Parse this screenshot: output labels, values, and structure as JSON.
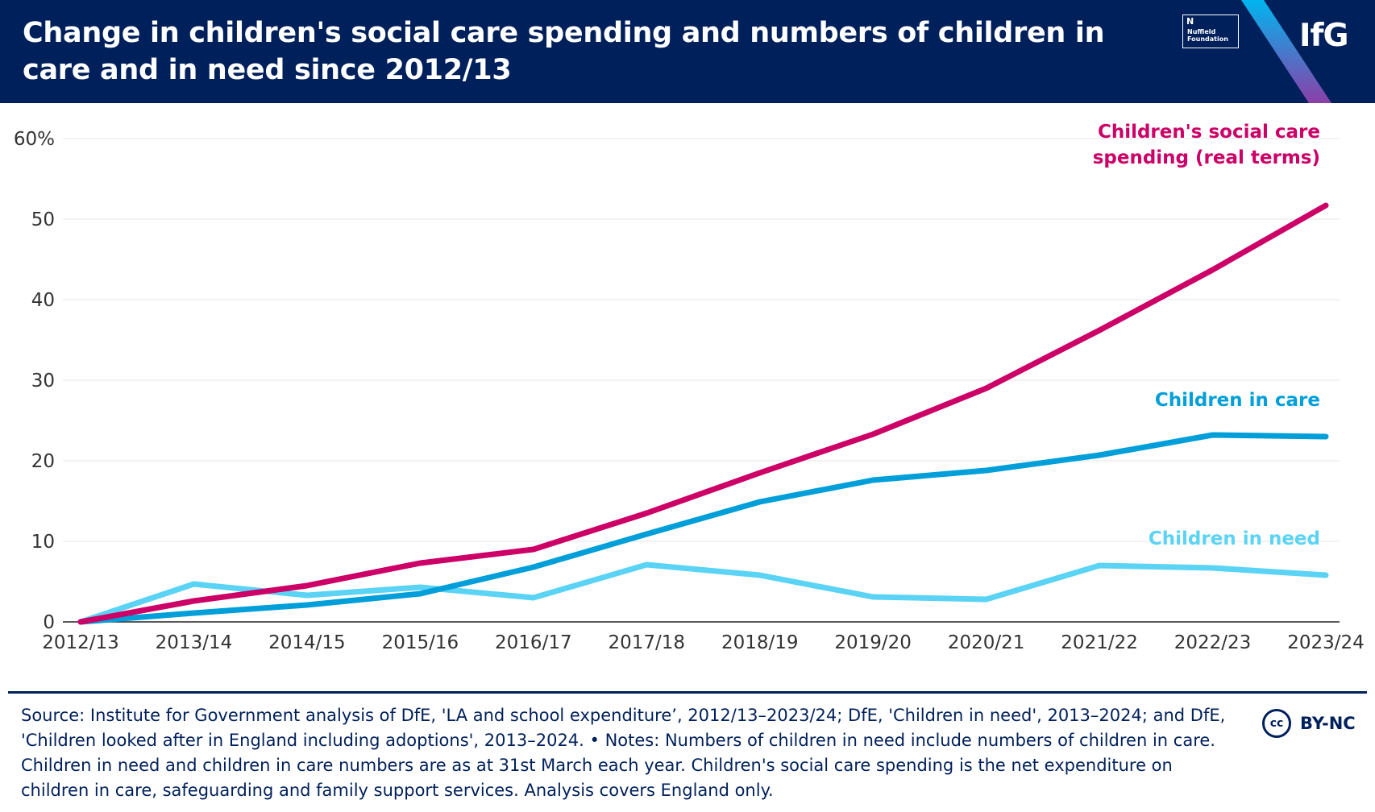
{
  "header": {
    "title": "Change in children's social care spending and numbers of children in care and in need since 2012/13",
    "nuffield_logo_text": "Nuffield Foundation",
    "ifg_logo_text": "IfG"
  },
  "colors": {
    "header_bg": "#00205b",
    "spending": "#cc0066",
    "in_care": "#009fd9",
    "in_need": "#5ad3f5",
    "axis_text": "#333333",
    "grid": "#e6e6e6"
  },
  "chart_data": {
    "type": "line",
    "title": "Change in children's social care spending and numbers of children in care and in need since 2012/13",
    "xlabel": "",
    "ylabel": "",
    "categories": [
      "2012/13",
      "2013/14",
      "2014/15",
      "2015/16",
      "2016/17",
      "2017/18",
      "2018/19",
      "2019/20",
      "2020/21",
      "2021/22",
      "2022/23",
      "2023/24"
    ],
    "ylim": [
      0,
      60
    ],
    "yticks": [
      "0",
      "10",
      "20",
      "30",
      "40",
      "50",
      "60%"
    ],
    "grid": true,
    "series": [
      {
        "name": "Children in need",
        "label": "Children in need",
        "color": "#5ad3f5",
        "values": [
          0,
          4.7,
          3.3,
          4.3,
          3.0,
          7.1,
          5.8,
          3.1,
          2.8,
          7.0,
          6.7,
          5.8
        ]
      },
      {
        "name": "Children in care",
        "label": "Children in care",
        "color": "#009fd9",
        "values": [
          0,
          1.1,
          2.1,
          3.5,
          6.8,
          10.9,
          14.9,
          17.6,
          18.8,
          20.7,
          23.2,
          23.0
        ]
      },
      {
        "name": "Children's social care spending (real terms)",
        "label_lines": [
          "Children's social care",
          "spending (real terms)"
        ],
        "color": "#cc0066",
        "values": [
          0,
          2.6,
          4.5,
          7.3,
          9.0,
          13.5,
          18.5,
          23.3,
          29.0,
          36.2,
          43.7,
          51.7
        ]
      }
    ]
  },
  "footer": {
    "source": "Source: Institute for Government analysis of DfE, 'LA and school expenditure’, 2012/13–2023/24; DfE, 'Children in need', 2013–2024; and DfE, 'Children looked after in England including adoptions', 2013–2024. • Notes: Numbers of children in need include numbers of children in care. Children in need and children in care numbers are as at 31st March each year. Children's social care spending is the net expenditure on children in care, safeguarding and family support services. Analysis covers England only.",
    "license_icon": "cc",
    "license": "BY-NC"
  }
}
